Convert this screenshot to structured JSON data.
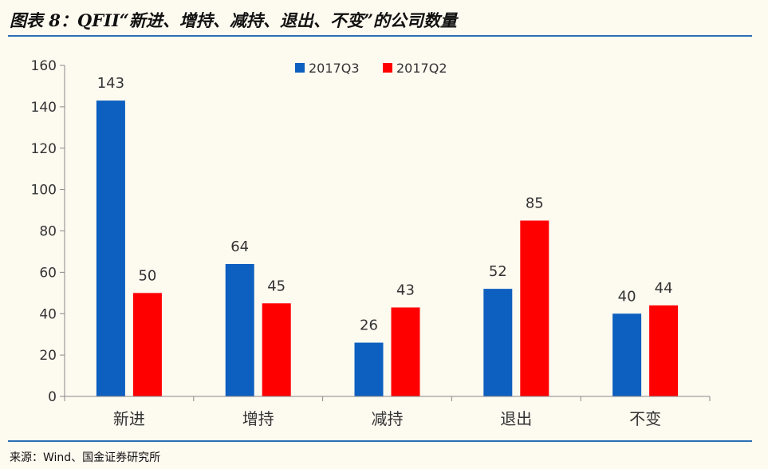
{
  "header": {
    "title": "图表 8：QFII“新进、增持、减持、退出、不变”的公司数量"
  },
  "footer": {
    "source": "来源：Wind、国金证券研究所"
  },
  "chart_data": {
    "type": "bar",
    "categories": [
      "新进",
      "增持",
      "减持",
      "退出",
      "不变"
    ],
    "series": [
      {
        "name": "2017Q3",
        "values": [
          143,
          64,
          26,
          52,
          40
        ],
        "color": "#0d5fc0"
      },
      {
        "name": "2017Q2",
        "values": [
          50,
          45,
          43,
          85,
          44
        ],
        "color": "#ff0000"
      }
    ],
    "title": "",
    "xlabel": "",
    "ylabel": "",
    "ylim": [
      0,
      160
    ],
    "yticks": [
      0,
      20,
      40,
      60,
      80,
      100,
      120,
      140,
      160
    ],
    "grid": false,
    "legend": "top-center",
    "data_labels": true
  }
}
